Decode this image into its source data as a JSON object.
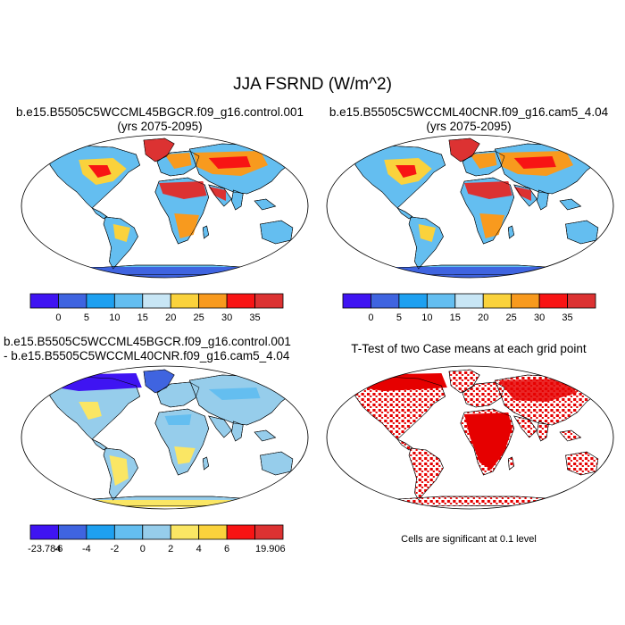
{
  "title": "JJA FSRND (W/m^2)",
  "panels": [
    {
      "title_line1": "b.e15.B5505C5WCCML45BGCR.f09_g16.control.001",
      "title_line2": "(yrs 2075-2095)"
    },
    {
      "title_line1": "b.e15.B5505C5WCCML40CNR.f09_g16.cam5_4.04",
      "title_line2": "(yrs 2075-2095)"
    },
    {
      "title_line1": "b.e15.B5505C5WCCML45BGCR.f09_g16.control.001",
      "title_line2": "- b.e15.B5505C5WCCML40CNR.f09_g16.cam5_4.04"
    },
    {
      "title_line1": "T-Test of two Case means at each grid point",
      "note": "Cells are significant at 0.1 level"
    }
  ],
  "colorbar_top": {
    "labels": [
      "0",
      "5",
      "10",
      "15",
      "20",
      "25",
      "30",
      "35"
    ],
    "colors": [
      "#3f14f2",
      "#3f64e0",
      "#1ea0f0",
      "#64bef0",
      "#c8e6f5",
      "#fad23c",
      "#f89a1e",
      "#f81414",
      "#dc3232"
    ]
  },
  "colorbar_diff": {
    "labels": [
      "-23.784",
      "-6",
      "-4",
      "-2",
      "0",
      "2",
      "4",
      "6",
      "19.906"
    ],
    "colors": [
      "#3f14f2",
      "#3f64e0",
      "#1ea0f0",
      "#64bef0",
      "#96cdeb",
      "#fae664",
      "#fad23c",
      "#f81414",
      "#dc3232"
    ]
  },
  "colors": {
    "ocean": "#ffffff",
    "ttest_significant": "#e60000"
  }
}
